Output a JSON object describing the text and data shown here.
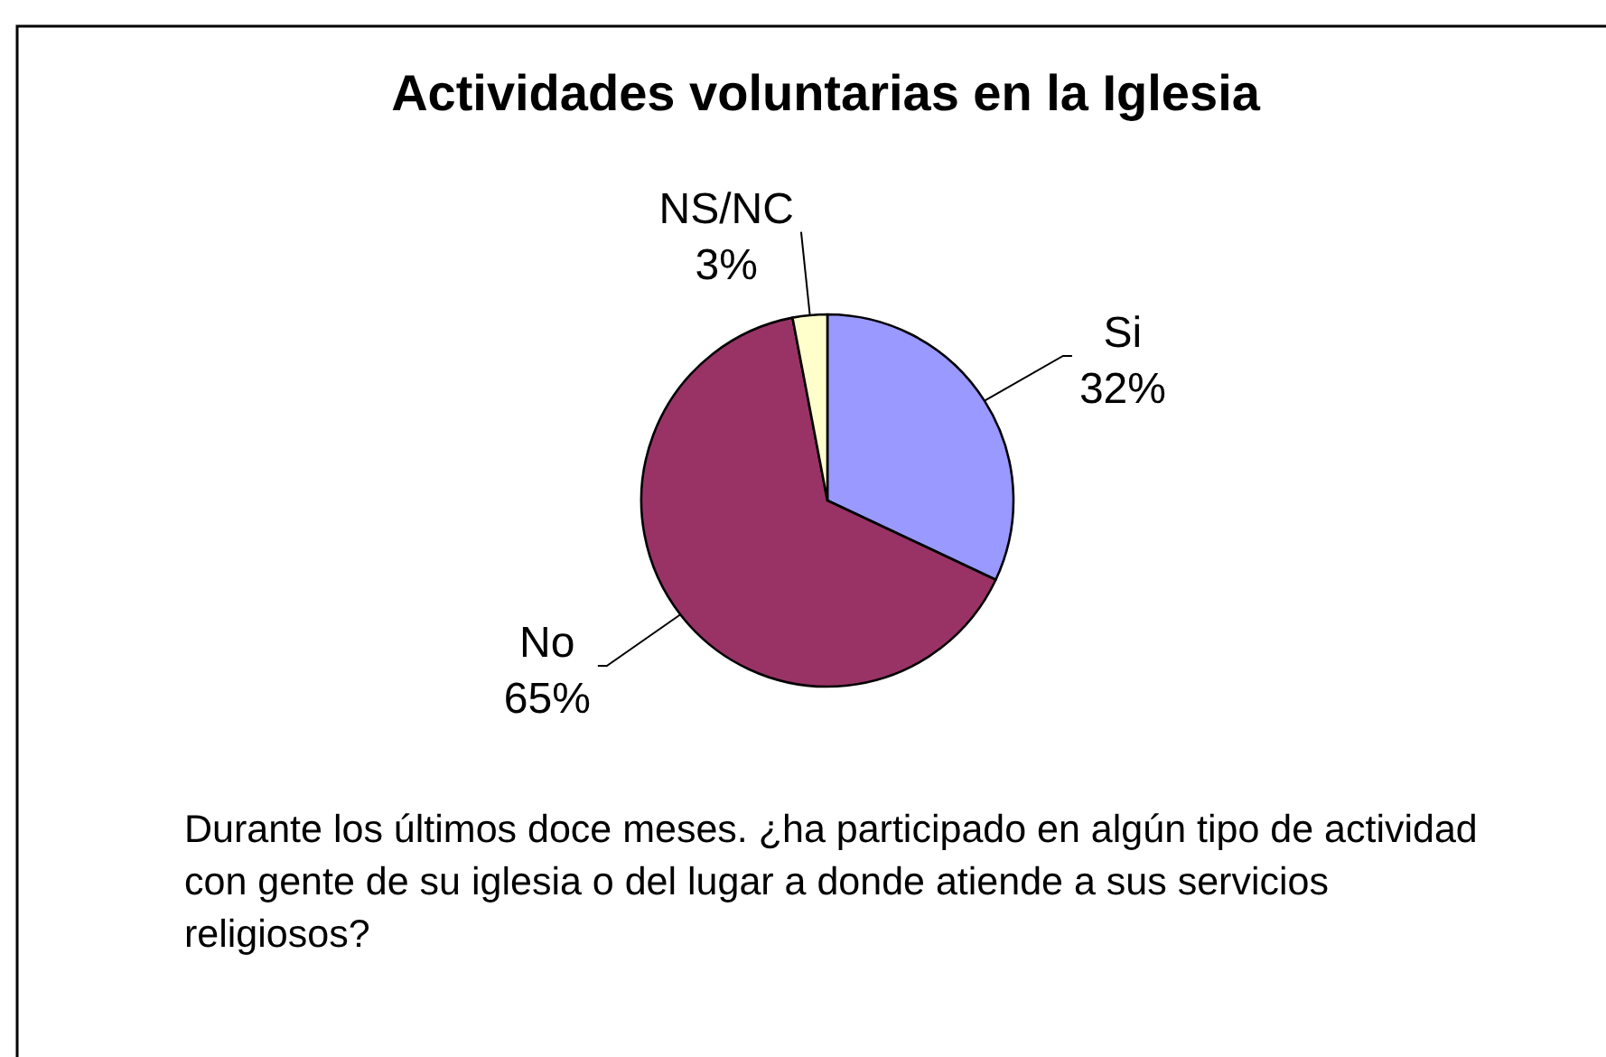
{
  "chart_data": {
    "type": "pie",
    "title": "Actividades voluntarias en la Iglesia",
    "categories": [
      "Si",
      "No",
      "NS/NC"
    ],
    "values": [
      32,
      65,
      3
    ],
    "value_labels": [
      "32%",
      "65%",
      "3%"
    ],
    "colors": [
      "#9999ff",
      "#993366",
      "#ffffcc"
    ],
    "annotations": [
      "Durante los últimos doce meses. ¿ha participado en algún tipo de actividad con gente de su iglesia o del lugar a donde atiende a sus servicios religiosos?"
    ]
  }
}
